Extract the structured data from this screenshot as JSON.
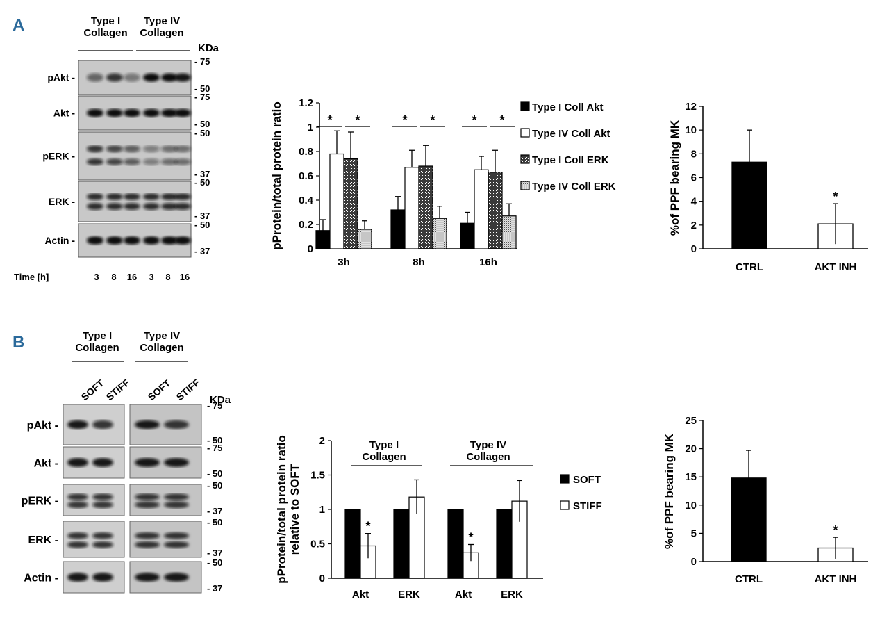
{
  "panels": [
    {
      "letter": "A"
    },
    {
      "letter": "B"
    }
  ],
  "blotA": {
    "groups": [
      "Type I\nCollagen",
      "Type IV\nCollagen"
    ],
    "unit": "KDa",
    "rows": [
      {
        "name": "pAkt -",
        "markers": [
          "- 75",
          "- 50"
        ]
      },
      {
        "name": "Akt -",
        "markers": [
          "- 75",
          "- 50"
        ]
      },
      {
        "name": "pERK -",
        "markers": [
          "- 50",
          "- 37"
        ]
      },
      {
        "name": "ERK -",
        "markers": [
          "- 50",
          "- 37"
        ]
      },
      {
        "name": "Actin -",
        "markers": [
          "- 50",
          "- 37"
        ]
      }
    ],
    "time_label": "Time [h]",
    "times": [
      "3",
      "8",
      "16",
      "3",
      "8",
      "16"
    ]
  },
  "blotB": {
    "groups": [
      "Type I\nCollagen",
      "Type IV\nCollagen"
    ],
    "conditions": [
      "SOFT",
      "STIFF",
      "SOFT",
      "STIFF"
    ],
    "unit": "KDa",
    "rows": [
      {
        "name": "pAkt -",
        "markers": [
          "- 75",
          "- 50"
        ]
      },
      {
        "name": "Akt -",
        "markers": [
          "- 75",
          "- 50"
        ]
      },
      {
        "name": "pERK -",
        "markers": [
          "- 50",
          "- 37"
        ]
      },
      {
        "name": "ERK -",
        "markers": [
          "- 50",
          "- 37"
        ]
      },
      {
        "name": "Actin -",
        "markers": [
          "- 50",
          "- 37"
        ]
      }
    ]
  },
  "chart_data": [
    {
      "id": "A_bar",
      "type": "bar",
      "categories": [
        "3h",
        "8h",
        "16h"
      ],
      "series": [
        {
          "name": "Type I Coll Akt",
          "values": [
            0.15,
            0.32,
            0.21
          ],
          "errors": [
            0.09,
            0.11,
            0.09
          ],
          "pattern": "solid"
        },
        {
          "name": "Type IV Coll Akt",
          "values": [
            0.78,
            0.67,
            0.65
          ],
          "errors": [
            0.19,
            0.14,
            0.11
          ],
          "pattern": "open"
        },
        {
          "name": "Type I Coll ERK",
          "values": [
            0.74,
            0.68,
            0.63
          ],
          "errors": [
            0.22,
            0.17,
            0.18
          ],
          "pattern": "cross"
        },
        {
          "name": "Type IV Coll ERK",
          "values": [
            0.16,
            0.25,
            0.27
          ],
          "errors": [
            0.07,
            0.1,
            0.1
          ],
          "pattern": "dots"
        }
      ],
      "ylabel": "pProtein/total protein ratio",
      "ylim": [
        0,
        1.2
      ],
      "yticks": [
        "0",
        "0.2",
        "0.4",
        "0.6",
        "0.8",
        "1",
        "1.2"
      ],
      "annotations": [
        "*",
        "*",
        "*",
        "*",
        "*",
        "*"
      ],
      "legend": "right"
    },
    {
      "id": "A_ppf",
      "type": "bar",
      "categories": [
        "CTRL",
        "AKT INH"
      ],
      "values": [
        7.3,
        2.1
      ],
      "errors": [
        2.7,
        1.7
      ],
      "colors": [
        "#000000",
        "#ffffff"
      ],
      "ylabel": "%of PPF bearing MK",
      "ylim": [
        0,
        12
      ],
      "yticks": [
        "0",
        "2",
        "4",
        "6",
        "8",
        "10",
        "12"
      ],
      "annotations": [
        "*"
      ]
    },
    {
      "id": "B_bar",
      "type": "bar",
      "categories": [
        "Akt",
        "ERK",
        "Akt",
        "ERK"
      ],
      "groups": [
        "Type I\nCollagen",
        "Type IV\nCollagen"
      ],
      "series": [
        {
          "name": "SOFT",
          "values": [
            1,
            1,
            1,
            1
          ],
          "errors": [
            0,
            0,
            0,
            0
          ],
          "pattern": "solid"
        },
        {
          "name": "STIFF",
          "values": [
            0.47,
            1.18,
            0.37,
            1.12
          ],
          "errors": [
            0.18,
            0.25,
            0.12,
            0.3
          ],
          "pattern": "open"
        }
      ],
      "ylabel": "pProtein/total protein ratio\nrelative to SOFT",
      "ylim": [
        0,
        2
      ],
      "yticks": [
        "0",
        "0.5",
        "1",
        "1.5",
        "2"
      ],
      "annotations": [
        "*",
        "*"
      ],
      "legend": "right"
    },
    {
      "id": "B_ppf",
      "type": "bar",
      "categories": [
        "CTRL",
        "AKT INH"
      ],
      "values": [
        14.8,
        2.4
      ],
      "errors": [
        4.9,
        1.9
      ],
      "colors": [
        "#000000",
        "#ffffff"
      ],
      "ylabel": "%of PPF bearing MK",
      "ylim": [
        0,
        25
      ],
      "yticks": [
        "0",
        "5",
        "10",
        "15",
        "20",
        "25"
      ],
      "annotations": [
        "*"
      ]
    }
  ]
}
